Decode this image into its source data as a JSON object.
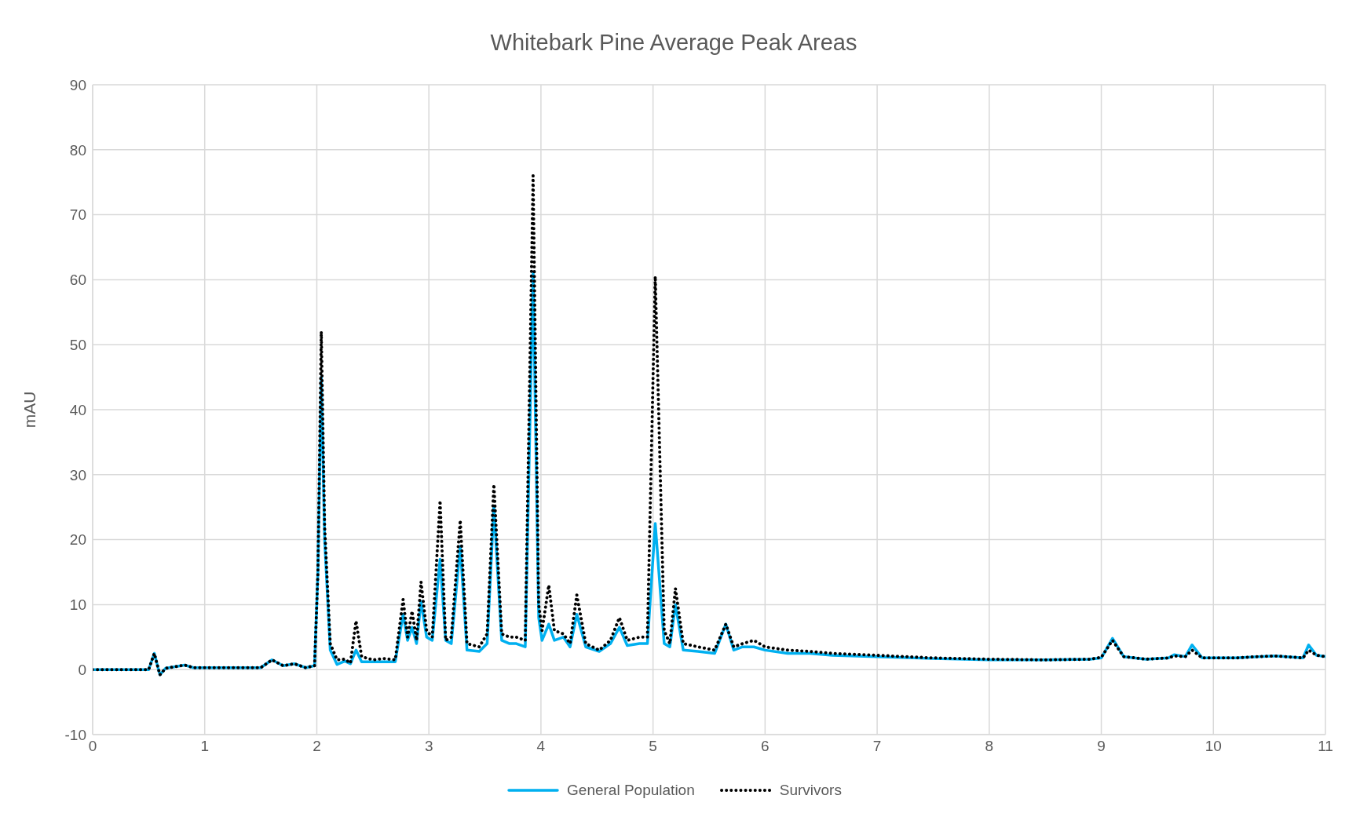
{
  "chart_data": {
    "type": "line",
    "title": "Whitebark Pine Average Peak Areas",
    "ylabel": "mAU",
    "x": [
      0,
      0.5,
      0.55,
      0.6,
      0.65,
      0.82,
      0.9,
      1.5,
      1.6,
      1.7,
      1.8,
      1.9,
      1.98,
      2.01,
      2.04,
      2.07,
      2.12,
      2.18,
      2.25,
      2.3,
      2.35,
      2.4,
      2.5,
      2.6,
      2.7,
      2.77,
      2.81,
      2.85,
      2.89,
      2.93,
      2.98,
      3.03,
      3.1,
      3.15,
      3.2,
      3.28,
      3.34,
      3.45,
      3.52,
      3.58,
      3.65,
      3.72,
      3.78,
      3.86,
      3.93,
      3.98,
      4.01,
      4.07,
      4.12,
      4.2,
      4.26,
      4.32,
      4.4,
      4.52,
      4.62,
      4.7,
      4.77,
      4.88,
      4.95,
      5.02,
      5.1,
      5.15,
      5.2,
      5.27,
      5.4,
      5.55,
      5.65,
      5.72,
      5.8,
      5.9,
      6.0,
      6.2,
      6.4,
      6.6,
      7.0,
      7.5,
      8.0,
      8.5,
      8.9,
      9.0,
      9.1,
      9.2,
      9.4,
      9.6,
      9.65,
      9.75,
      9.81,
      9.9,
      10.2,
      10.4,
      10.55,
      10.8,
      10.85,
      10.92,
      11
    ],
    "series": [
      {
        "name": "General Population",
        "color": "#00b0f0",
        "line_style": "solid",
        "values": [
          0,
          0,
          2.5,
          -0.8,
          0.2,
          0.7,
          0.3,
          0.3,
          1.5,
          0.6,
          0.9,
          0.3,
          0.6,
          15,
          45,
          20,
          3,
          0.8,
          1.3,
          0.9,
          3,
          1.2,
          1.2,
          1.2,
          1.2,
          8.5,
          4.5,
          6.5,
          4,
          10.5,
          5,
          4.5,
          17,
          4.5,
          4,
          19,
          3,
          2.8,
          4,
          25,
          4.5,
          4,
          4,
          3.5,
          61,
          8,
          4.5,
          7,
          4.5,
          5,
          3.5,
          8.5,
          3.5,
          2.8,
          4,
          6.5,
          3.7,
          4,
          4,
          22.5,
          4,
          3.5,
          10,
          3,
          2.8,
          2.5,
          7,
          3,
          3.5,
          3.5,
          3,
          2.5,
          2.5,
          2.2,
          2,
          1.7,
          1.5,
          1.5,
          1.6,
          1.8,
          4.8,
          2,
          1.6,
          1.8,
          2.3,
          2,
          3.8,
          1.8,
          1.8,
          2,
          2.1,
          1.8,
          3.8,
          2.2,
          2
        ]
      },
      {
        "name": "Survivors",
        "color": "#000000",
        "line_style": "dotted",
        "values": [
          0,
          0,
          2.5,
          -0.8,
          0.2,
          0.7,
          0.3,
          0.3,
          1.5,
          0.6,
          0.9,
          0.3,
          0.6,
          15,
          52,
          22,
          4,
          1.5,
          1.6,
          1,
          7.5,
          2,
          1.5,
          1.7,
          1.5,
          10.8,
          5,
          9,
          4.5,
          13.5,
          6,
          5,
          26,
          4.5,
          5,
          23,
          4,
          3.5,
          5.5,
          28.5,
          5.5,
          5,
          5,
          4.5,
          76,
          10,
          6,
          13,
          6,
          5.5,
          4,
          11.5,
          4,
          3,
          4.5,
          8,
          4.5,
          5,
          5,
          60.5,
          6,
          4,
          12.5,
          4,
          3.5,
          3,
          7,
          3.5,
          4,
          4.5,
          3.5,
          3,
          2.8,
          2.5,
          2.2,
          1.8,
          1.6,
          1.5,
          1.6,
          1.9,
          4.5,
          2,
          1.6,
          1.8,
          2.1,
          2,
          3,
          1.8,
          1.8,
          2,
          2.1,
          1.8,
          3,
          2.2,
          2
        ]
      }
    ],
    "xlim": [
      0,
      11
    ],
    "xticks": [
      0,
      1,
      2,
      3,
      4,
      5,
      6,
      7,
      8,
      9,
      10,
      11
    ],
    "ylim": [
      -10,
      90
    ],
    "yticks": [
      -10,
      0,
      10,
      20,
      30,
      40,
      50,
      60,
      70,
      80,
      90
    ],
    "grid": true,
    "legend": "bottom"
  }
}
